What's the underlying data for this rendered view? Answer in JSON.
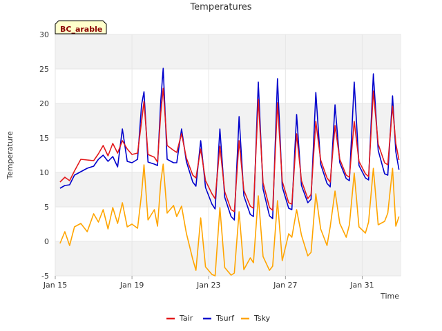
{
  "chart_data": {
    "type": "line",
    "title": "Temperatures",
    "site_label": "BC_arable",
    "xlabel": "Time",
    "ylabel": "Temperature",
    "ylim": [
      -5,
      30
    ],
    "yticks": [
      -5,
      0,
      5,
      10,
      15,
      20,
      25,
      30
    ],
    "xlim": [
      "2000-01-15",
      "2000-02-02"
    ],
    "xticks": [
      {
        "date": "2000-01-15",
        "label": "Jan 15"
      },
      {
        "date": "2000-01-19",
        "label": "Jan 19"
      },
      {
        "date": "2000-01-23",
        "label": "Jan 23"
      },
      {
        "date": "2000-01-27",
        "label": "Jan 27"
      },
      {
        "date": "2000-01-31",
        "label": "Jan 31"
      }
    ],
    "grid": true,
    "legend_position": "bottom-center",
    "series": [
      {
        "name": "Tair",
        "color": "#e31a1c",
        "points": [
          [
            "2000-01-15 06:00",
            8.6
          ],
          [
            "2000-01-15 12:00",
            9.3
          ],
          [
            "2000-01-15 18:00",
            8.8
          ],
          [
            "2000-01-16 00:00",
            10.2
          ],
          [
            "2000-01-16 08:00",
            11.9
          ],
          [
            "2000-01-16 16:00",
            11.8
          ],
          [
            "2000-01-17 00:00",
            11.7
          ],
          [
            "2000-01-17 06:00",
            12.7
          ],
          [
            "2000-01-17 12:00",
            13.9
          ],
          [
            "2000-01-17 18:00",
            12.4
          ],
          [
            "2000-01-18 00:00",
            14.2
          ],
          [
            "2000-01-18 06:00",
            12.8
          ],
          [
            "2000-01-18 12:00",
            14.6
          ],
          [
            "2000-01-18 18:00",
            13.4
          ],
          [
            "2000-01-19 00:00",
            12.6
          ],
          [
            "2000-01-19 07:00",
            12.8
          ],
          [
            "2000-01-19 12:00",
            17.4
          ],
          [
            "2000-01-19 15:00",
            20.3
          ],
          [
            "2000-01-19 20:00",
            12.6
          ],
          [
            "2000-01-20 04:00",
            12.2
          ],
          [
            "2000-01-20 08:00",
            11.5
          ],
          [
            "2000-01-20 12:00",
            18.6
          ],
          [
            "2000-01-20 15:00",
            22.2
          ],
          [
            "2000-01-20 20:00",
            13.9
          ],
          [
            "2000-01-21 04:00",
            13.2
          ],
          [
            "2000-01-21 08:00",
            12.9
          ],
          [
            "2000-01-21 14:00",
            15.6
          ],
          [
            "2000-01-21 20:00",
            12.1
          ],
          [
            "2000-01-22 04:00",
            9.6
          ],
          [
            "2000-01-22 08:00",
            9.2
          ],
          [
            "2000-01-22 14:00",
            13.4
          ],
          [
            "2000-01-22 20:00",
            8.8
          ],
          [
            "2000-01-23 04:00",
            6.9
          ],
          [
            "2000-01-23 08:00",
            6.2
          ],
          [
            "2000-01-23 14:00",
            13.8
          ],
          [
            "2000-01-23 20:00",
            7.2
          ],
          [
            "2000-01-24 04:00",
            4.6
          ],
          [
            "2000-01-24 08:00",
            4.3
          ],
          [
            "2000-01-24 14:00",
            14.6
          ],
          [
            "2000-01-24 20:00",
            7.4
          ],
          [
            "2000-01-25 04:00",
            5.1
          ],
          [
            "2000-01-25 08:00",
            4.8
          ],
          [
            "2000-01-25 14:00",
            20.6
          ],
          [
            "2000-01-25 20:00",
            8.5
          ],
          [
            "2000-01-26 04:00",
            4.9
          ],
          [
            "2000-01-26 08:00",
            4.5
          ],
          [
            "2000-01-26 14:00",
            20.1
          ],
          [
            "2000-01-26 20:00",
            8.7
          ],
          [
            "2000-01-27 04:00",
            5.6
          ],
          [
            "2000-01-27 08:00",
            5.4
          ],
          [
            "2000-01-27 14:00",
            15.6
          ],
          [
            "2000-01-27 20:00",
            8.8
          ],
          [
            "2000-01-28 04:00",
            6.2
          ],
          [
            "2000-01-28 08:00",
            6.8
          ],
          [
            "2000-01-28 14:00",
            17.4
          ],
          [
            "2000-01-28 20:00",
            11.8
          ],
          [
            "2000-01-29 04:00",
            9.2
          ],
          [
            "2000-01-29 08:00",
            8.6
          ],
          [
            "2000-01-29 14:00",
            16.8
          ],
          [
            "2000-01-29 20:00",
            11.9
          ],
          [
            "2000-01-30 04:00",
            9.6
          ],
          [
            "2000-01-30 08:00",
            9.3
          ],
          [
            "2000-01-30 14:00",
            17.4
          ],
          [
            "2000-01-30 20:00",
            11.6
          ],
          [
            "2000-01-31 04:00",
            9.8
          ],
          [
            "2000-01-31 08:00",
            9.4
          ],
          [
            "2000-01-31 14:00",
            21.8
          ],
          [
            "2000-01-31 20:00",
            14.1
          ],
          [
            "2000-02-01 04:00",
            11.4
          ],
          [
            "2000-02-01 08:00",
            11.1
          ],
          [
            "2000-02-01 14:00",
            19.6
          ],
          [
            "2000-02-01 18:00",
            14.2
          ],
          [
            "2000-02-01 22:00",
            11.8
          ]
        ]
      },
      {
        "name": "Tsurf",
        "color": "#0000cc",
        "points": [
          [
            "2000-01-15 06:00",
            7.7
          ],
          [
            "2000-01-15 12:00",
            8.1
          ],
          [
            "2000-01-15 18:00",
            8.2
          ],
          [
            "2000-01-16 00:00",
            9.6
          ],
          [
            "2000-01-16 08:00",
            10.1
          ],
          [
            "2000-01-16 16:00",
            10.6
          ],
          [
            "2000-01-17 00:00",
            10.9
          ],
          [
            "2000-01-17 06:00",
            11.9
          ],
          [
            "2000-01-17 12:00",
            12.5
          ],
          [
            "2000-01-17 18:00",
            11.6
          ],
          [
            "2000-01-18 00:00",
            12.3
          ],
          [
            "2000-01-18 06:00",
            10.8
          ],
          [
            "2000-01-18 12:00",
            16.3
          ],
          [
            "2000-01-18 18:00",
            11.6
          ],
          [
            "2000-01-19 00:00",
            11.4
          ],
          [
            "2000-01-19 07:00",
            11.9
          ],
          [
            "2000-01-19 12:00",
            19.8
          ],
          [
            "2000-01-19 15:00",
            21.7
          ],
          [
            "2000-01-19 20:00",
            11.5
          ],
          [
            "2000-01-20 04:00",
            11.2
          ],
          [
            "2000-01-20 08:00",
            11.0
          ],
          [
            "2000-01-20 12:00",
            20.4
          ],
          [
            "2000-01-20 15:00",
            25.1
          ],
          [
            "2000-01-20 20:00",
            11.9
          ],
          [
            "2000-01-21 04:00",
            11.4
          ],
          [
            "2000-01-21 08:00",
            11.4
          ],
          [
            "2000-01-21 14:00",
            16.3
          ],
          [
            "2000-01-21 20:00",
            11.6
          ],
          [
            "2000-01-22 04:00",
            8.6
          ],
          [
            "2000-01-22 08:00",
            8.0
          ],
          [
            "2000-01-22 14:00",
            14.6
          ],
          [
            "2000-01-22 20:00",
            7.8
          ],
          [
            "2000-01-23 04:00",
            5.4
          ],
          [
            "2000-01-23 08:00",
            4.7
          ],
          [
            "2000-01-23 14:00",
            16.3
          ],
          [
            "2000-01-23 20:00",
            6.4
          ],
          [
            "2000-01-24 04:00",
            3.6
          ],
          [
            "2000-01-24 08:00",
            3.1
          ],
          [
            "2000-01-24 14:00",
            18.1
          ],
          [
            "2000-01-24 20:00",
            6.6
          ],
          [
            "2000-01-25 04:00",
            3.9
          ],
          [
            "2000-01-25 08:00",
            3.6
          ],
          [
            "2000-01-25 14:00",
            23.1
          ],
          [
            "2000-01-25 20:00",
            7.6
          ],
          [
            "2000-01-26 04:00",
            3.7
          ],
          [
            "2000-01-26 08:00",
            3.3
          ],
          [
            "2000-01-26 14:00",
            23.6
          ],
          [
            "2000-01-26 20:00",
            7.9
          ],
          [
            "2000-01-27 04:00",
            4.8
          ],
          [
            "2000-01-27 08:00",
            4.6
          ],
          [
            "2000-01-27 14:00",
            18.4
          ],
          [
            "2000-01-27 20:00",
            8.1
          ],
          [
            "2000-01-28 04:00",
            5.6
          ],
          [
            "2000-01-28 08:00",
            6.1
          ],
          [
            "2000-01-28 14:00",
            21.6
          ],
          [
            "2000-01-28 20:00",
            11.2
          ],
          [
            "2000-01-29 04:00",
            8.4
          ],
          [
            "2000-01-29 08:00",
            7.9
          ],
          [
            "2000-01-29 14:00",
            19.8
          ],
          [
            "2000-01-29 20:00",
            11.4
          ],
          [
            "2000-01-30 04:00",
            9.1
          ],
          [
            "2000-01-30 08:00",
            8.8
          ],
          [
            "2000-01-30 14:00",
            23.1
          ],
          [
            "2000-01-30 20:00",
            11.0
          ],
          [
            "2000-01-31 04:00",
            9.2
          ],
          [
            "2000-01-31 08:00",
            8.9
          ],
          [
            "2000-01-31 14:00",
            24.3
          ],
          [
            "2000-01-31 20:00",
            13.2
          ],
          [
            "2000-02-01 04:00",
            9.8
          ],
          [
            "2000-02-01 08:00",
            9.6
          ],
          [
            "2000-02-01 14:00",
            21.1
          ],
          [
            "2000-02-01 18:00",
            13.0
          ],
          [
            "2000-02-01 22:00",
            10.4
          ]
        ]
      },
      {
        "name": "Tsky",
        "color": "#ffa500",
        "points": [
          [
            "2000-01-15 06:00",
            -0.3
          ],
          [
            "2000-01-15 12:00",
            1.4
          ],
          [
            "2000-01-15 18:00",
            -0.6
          ],
          [
            "2000-01-16 00:00",
            2.1
          ],
          [
            "2000-01-16 08:00",
            2.6
          ],
          [
            "2000-01-16 16:00",
            1.4
          ],
          [
            "2000-01-17 00:00",
            4.0
          ],
          [
            "2000-01-17 06:00",
            2.8
          ],
          [
            "2000-01-17 12:00",
            4.6
          ],
          [
            "2000-01-17 18:00",
            1.8
          ],
          [
            "2000-01-18 00:00",
            4.9
          ],
          [
            "2000-01-18 06:00",
            2.6
          ],
          [
            "2000-01-18 12:00",
            5.6
          ],
          [
            "2000-01-18 18:00",
            2.1
          ],
          [
            "2000-01-19 00:00",
            2.5
          ],
          [
            "2000-01-19 07:00",
            1.9
          ],
          [
            "2000-01-19 12:00",
            6.9
          ],
          [
            "2000-01-19 15:00",
            11.1
          ],
          [
            "2000-01-19 20:00",
            3.1
          ],
          [
            "2000-01-20 04:00",
            4.6
          ],
          [
            "2000-01-20 08:00",
            2.2
          ],
          [
            "2000-01-20 12:00",
            8.6
          ],
          [
            "2000-01-20 15:00",
            11.2
          ],
          [
            "2000-01-20 20:00",
            4.1
          ],
          [
            "2000-01-21 04:00",
            5.2
          ],
          [
            "2000-01-21 08:00",
            3.6
          ],
          [
            "2000-01-21 14:00",
            5.1
          ],
          [
            "2000-01-21 20:00",
            1.2
          ],
          [
            "2000-01-22 04:00",
            -2.6
          ],
          [
            "2000-01-22 08:00",
            -4.2
          ],
          [
            "2000-01-22 14:00",
            3.4
          ],
          [
            "2000-01-22 20:00",
            -3.7
          ],
          [
            "2000-01-23 04:00",
            -4.8
          ],
          [
            "2000-01-23 08:00",
            -5.0
          ],
          [
            "2000-01-23 14:00",
            4.9
          ],
          [
            "2000-01-23 20:00",
            -3.8
          ],
          [
            "2000-01-24 04:00",
            -4.9
          ],
          [
            "2000-01-24 08:00",
            -4.6
          ],
          [
            "2000-01-24 14:00",
            4.3
          ],
          [
            "2000-01-24 20:00",
            -4.1
          ],
          [
            "2000-01-25 04:00",
            -2.4
          ],
          [
            "2000-01-25 08:00",
            -3.1
          ],
          [
            "2000-01-25 14:00",
            6.6
          ],
          [
            "2000-01-25 20:00",
            -2.2
          ],
          [
            "2000-01-26 04:00",
            -4.2
          ],
          [
            "2000-01-26 08:00",
            -3.6
          ],
          [
            "2000-01-26 14:00",
            5.9
          ],
          [
            "2000-01-26 20:00",
            -2.8
          ],
          [
            "2000-01-27 04:00",
            1.1
          ],
          [
            "2000-01-27 08:00",
            0.6
          ],
          [
            "2000-01-27 14:00",
            4.6
          ],
          [
            "2000-01-27 20:00",
            0.9
          ],
          [
            "2000-01-28 04:00",
            -2.1
          ],
          [
            "2000-01-28 08:00",
            -1.6
          ],
          [
            "2000-01-28 14:00",
            6.9
          ],
          [
            "2000-01-28 20:00",
            1.8
          ],
          [
            "2000-01-29 04:00",
            -0.6
          ],
          [
            "2000-01-29 08:00",
            2.1
          ],
          [
            "2000-01-29 14:00",
            7.3
          ],
          [
            "2000-01-29 20:00",
            2.6
          ],
          [
            "2000-01-30 04:00",
            0.6
          ],
          [
            "2000-01-30 08:00",
            2.4
          ],
          [
            "2000-01-30 14:00",
            9.9
          ],
          [
            "2000-01-30 20:00",
            2.1
          ],
          [
            "2000-01-31 04:00",
            1.2
          ],
          [
            "2000-01-31 08:00",
            2.8
          ],
          [
            "2000-01-31 14:00",
            10.6
          ],
          [
            "2000-01-31 20:00",
            2.4
          ],
          [
            "2000-02-01 04:00",
            2.9
          ],
          [
            "2000-02-01 08:00",
            4.1
          ],
          [
            "2000-02-01 14:00",
            10.6
          ],
          [
            "2000-02-01 18:00",
            2.2
          ],
          [
            "2000-02-01 22:00",
            3.6
          ]
        ]
      }
    ]
  }
}
